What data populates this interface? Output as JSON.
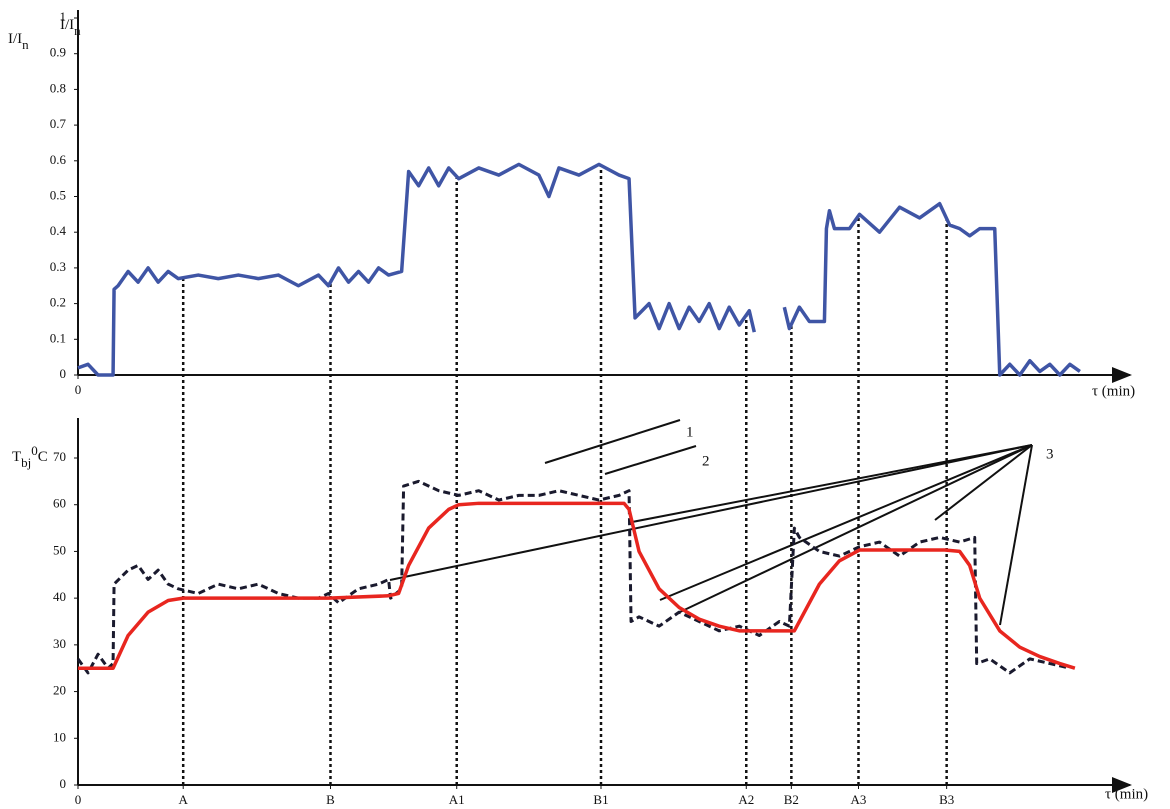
{
  "chart_data": [
    {
      "type": "line",
      "y_label": [
        "I/I",
        "n"
      ],
      "x_label": "τ (min)",
      "xlim": [
        0,
        105
      ],
      "ylim": [
        0,
        1
      ],
      "xticks": [
        0
      ],
      "yticks": [
        0,
        0.1,
        0.2,
        0.3,
        0.4,
        0.5,
        0.6,
        0.7,
        0.8,
        0.9,
        1
      ],
      "series": [
        {
          "color": "#3f55a5",
          "x": [
            0,
            1,
            2,
            3.5,
            3.6,
            4,
            5,
            6,
            7,
            8,
            9,
            10,
            12,
            14,
            16,
            18,
            20,
            22,
            24,
            25,
            26,
            27,
            28,
            29,
            30,
            31,
            32.3,
            33,
            34,
            35,
            36,
            37,
            38,
            40,
            42,
            44,
            46,
            47,
            48,
            50,
            52,
            54,
            55,
            55.6,
            57,
            58,
            59,
            60,
            61,
            62,
            63,
            64,
            65,
            66,
            67,
            67.5,
            68,
            70.5,
            71,
            72,
            73,
            74.5,
            74.7,
            75,
            75.5,
            77,
            78,
            80,
            82,
            84,
            86,
            87,
            88,
            89,
            90,
            91.5,
            92,
            93,
            94,
            95,
            96,
            97,
            98,
            99,
            100
          ],
          "values": [
            0.02,
            0.03,
            0,
            0,
            0.24,
            0.25,
            0.29,
            0.26,
            0.3,
            0.26,
            0.29,
            0.27,
            0.28,
            0.27,
            0.28,
            0.27,
            0.28,
            0.25,
            0.28,
            0.25,
            0.3,
            0.26,
            0.29,
            0.26,
            0.3,
            0.28,
            0.29,
            0.57,
            0.53,
            0.58,
            0.53,
            0.58,
            0.55,
            0.58,
            0.56,
            0.59,
            0.56,
            0.5,
            0.58,
            0.56,
            0.59,
            0.56,
            0.55,
            0.16,
            0.2,
            0.13,
            0.2,
            0.13,
            0.19,
            0.15,
            0.2,
            0.13,
            0.19,
            0.14,
            0.18,
            0.12,
            null,
            0.19,
            0.13,
            0.19,
            0.15,
            0.15,
            0.41,
            0.46,
            0.41,
            0.41,
            0.45,
            0.4,
            0.47,
            0.44,
            0.48,
            0.42,
            0.41,
            0.39,
            0.41,
            0.41,
            0,
            0.03,
            0,
            0.04,
            0.01,
            0.03,
            0,
            0.03,
            0.01
          ]
        }
      ]
    },
    {
      "type": "line",
      "y_label": [
        "T",
        "bj",
        "0",
        "C"
      ],
      "x_label": "τ (min)",
      "xlim": [
        0,
        105
      ],
      "ylim": [
        0,
        70
      ],
      "xticks": [
        0,
        {
          "value": 10.5,
          "label": "A"
        },
        {
          "value": 25.2,
          "label": "B"
        },
        {
          "value": 37.8,
          "label": "A1"
        },
        {
          "value": 52.2,
          "label": "B1"
        },
        {
          "value": 66.7,
          "label": "A2"
        },
        {
          "value": 71.2,
          "label": "B2"
        },
        {
          "value": 77.9,
          "label": "A3"
        },
        {
          "value": 86.7,
          "label": "B3"
        }
      ],
      "yticks": [
        0,
        10,
        20,
        30,
        40,
        50,
        60,
        70
      ],
      "series": [
        {
          "color": "#1a1a2e",
          "dash": true,
          "x": [
            0,
            1,
            2,
            3,
            3.5,
            3.6,
            5,
            6,
            7,
            8,
            9,
            10,
            12,
            14,
            16,
            18,
            20,
            22,
            24,
            25,
            26,
            28,
            30,
            31,
            31.2,
            32.3,
            32.5,
            34,
            36,
            38,
            40,
            42,
            44,
            46,
            48,
            50,
            52,
            54,
            55,
            55.2,
            56,
            58,
            60,
            62,
            64,
            66,
            68,
            70,
            71,
            71.5,
            72,
            74,
            76,
            78,
            80,
            82,
            84,
            86,
            88,
            89.5,
            89.7,
            91,
            93,
            95,
            97,
            99
          ],
          "values": [
            27,
            24,
            28,
            25,
            26,
            43,
            46,
            47,
            44,
            46,
            43,
            42,
            41,
            43,
            42,
            43,
            41,
            40,
            40,
            41,
            39,
            42,
            43,
            44,
            40,
            42,
            64,
            65,
            63,
            62,
            63,
            61,
            62,
            62,
            63,
            62,
            61,
            62,
            63,
            35,
            36,
            34,
            37,
            35,
            33,
            34,
            32,
            35,
            34,
            55,
            53,
            50,
            49,
            51,
            52,
            49,
            52,
            53,
            52,
            53,
            26,
            27,
            24,
            27,
            26,
            25
          ]
        },
        {
          "color": "#e8261f",
          "x": [
            0,
            3.5,
            5,
            7,
            9,
            10.5,
            25,
            31,
            32,
            33,
            35,
            37,
            38,
            40,
            54.5,
            55,
            56,
            58,
            60,
            62,
            64,
            66,
            70,
            71.5,
            72,
            74,
            76,
            78,
            86.5,
            88,
            89,
            90,
            92,
            94,
            96,
            98,
            99.5
          ],
          "values": [
            25,
            25,
            32,
            37,
            39.5,
            40,
            40,
            40.5,
            41,
            47,
            55,
            59,
            60,
            60.3,
            60.3,
            59,
            50,
            42,
            38,
            35.5,
            34,
            33,
            33,
            33,
            35,
            43,
            48,
            50.3,
            50.3,
            50,
            47,
            40,
            33,
            29.5,
            27.5,
            26,
            25
          ]
        }
      ],
      "annotations": [
        "1",
        "2",
        "3"
      ]
    }
  ]
}
